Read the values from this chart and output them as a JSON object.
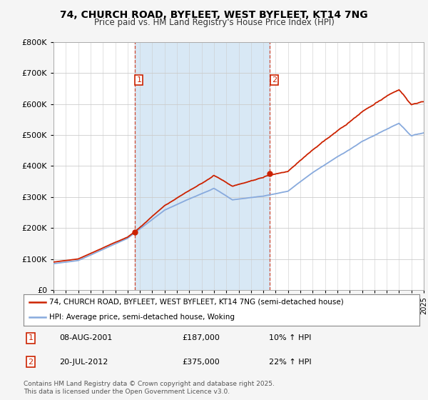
{
  "title": "74, CHURCH ROAD, BYFLEET, WEST BYFLEET, KT14 7NG",
  "subtitle": "Price paid vs. HM Land Registry's House Price Index (HPI)",
  "legend_entry1": "74, CHURCH ROAD, BYFLEET, WEST BYFLEET, KT14 7NG (semi-detached house)",
  "legend_entry2": "HPI: Average price, semi-detached house, Woking",
  "transaction1_label": "1",
  "transaction1_date": "08-AUG-2001",
  "transaction1_price": "£187,000",
  "transaction1_hpi": "10% ↑ HPI",
  "transaction2_label": "2",
  "transaction2_date": "20-JUL-2012",
  "transaction2_price": "£375,000",
  "transaction2_hpi": "22% ↑ HPI",
  "footer": "Contains HM Land Registry data © Crown copyright and database right 2025.\nThis data is licensed under the Open Government Licence v3.0.",
  "red_color": "#cc2200",
  "blue_color": "#88aadd",
  "shade_color": "#d8e8f5",
  "vline_color": "#cc2200",
  "background_color": "#f5f5f5",
  "plot_bg_color": "#ffffff",
  "ylim": [
    0,
    800000
  ],
  "yticks": [
    0,
    100000,
    200000,
    300000,
    400000,
    500000,
    600000,
    700000,
    800000
  ],
  "year_start": 1995,
  "year_end": 2025,
  "transaction1_year": 2001.58,
  "transaction2_year": 2012.54
}
